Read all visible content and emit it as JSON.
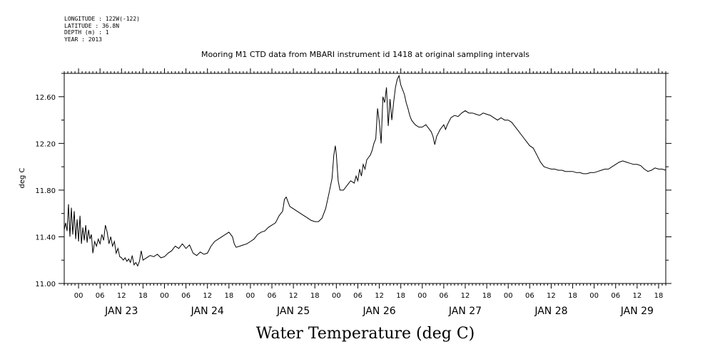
{
  "header": {
    "lines": [
      "LONGITUDE : 122W(-122)",
      "LATITUDE : 36.8N",
      "DEPTH (m) : 1",
      "YEAR : 2013"
    ]
  },
  "chart_data": {
    "type": "line",
    "title": "Mooring M1 CTD data from MBARI instrument id 1418 at original sampling intervals",
    "xlabel": "Water Temperature (deg C)",
    "ylabel": "deg C",
    "ylim": [
      11.0,
      12.8
    ],
    "xlim_hours": [
      -4,
      164
    ],
    "yticks": [
      "11.00",
      "11.40",
      "11.80",
      "12.20",
      "12.60"
    ],
    "hour_ticks": [
      "00",
      "06",
      "12",
      "18",
      "00",
      "06",
      "12",
      "18",
      "00",
      "06",
      "12",
      "18",
      "00",
      "06",
      "12",
      "18",
      "00",
      "06",
      "12",
      "18",
      "00",
      "06",
      "12",
      "18",
      "00",
      "06",
      "12",
      "18"
    ],
    "date_labels": [
      "JAN 23",
      "JAN 24",
      "JAN 25",
      "JAN 26",
      "JAN 27",
      "JAN 28",
      "JAN 29"
    ],
    "x_unit": "hours from JAN 23 00:00",
    "series": [
      {
        "name": "",
        "points": [
          [
            -4.0,
            11.46
          ],
          [
            -3.6,
            11.52
          ],
          [
            -3.2,
            11.45
          ],
          [
            -2.8,
            11.68
          ],
          [
            -2.4,
            11.4
          ],
          [
            -2.0,
            11.65
          ],
          [
            -1.6,
            11.42
          ],
          [
            -1.2,
            11.62
          ],
          [
            -0.8,
            11.38
          ],
          [
            -0.4,
            11.55
          ],
          [
            0.0,
            11.36
          ],
          [
            0.4,
            11.58
          ],
          [
            0.8,
            11.34
          ],
          [
            1.2,
            11.48
          ],
          [
            1.6,
            11.37
          ],
          [
            2.0,
            11.5
          ],
          [
            2.4,
            11.35
          ],
          [
            2.8,
            11.46
          ],
          [
            3.2,
            11.38
          ],
          [
            3.6,
            11.42
          ],
          [
            4.0,
            11.26
          ],
          [
            4.5,
            11.36
          ],
          [
            5.0,
            11.32
          ],
          [
            5.5,
            11.38
          ],
          [
            6.0,
            11.34
          ],
          [
            6.5,
            11.42
          ],
          [
            7.0,
            11.37
          ],
          [
            7.5,
            11.5
          ],
          [
            8.0,
            11.44
          ],
          [
            8.5,
            11.34
          ],
          [
            9.0,
            11.4
          ],
          [
            9.5,
            11.32
          ],
          [
            10.0,
            11.36
          ],
          [
            10.5,
            11.26
          ],
          [
            11.0,
            11.3
          ],
          [
            11.5,
            11.23
          ],
          [
            12.0,
            11.22
          ],
          [
            12.5,
            11.2
          ],
          [
            13.0,
            11.22
          ],
          [
            13.5,
            11.19
          ],
          [
            14.0,
            11.21
          ],
          [
            14.5,
            11.18
          ],
          [
            15.0,
            11.24
          ],
          [
            15.5,
            11.16
          ],
          [
            16.0,
            11.18
          ],
          [
            16.5,
            11.15
          ],
          [
            17.0,
            11.19
          ],
          [
            17.5,
            11.28
          ],
          [
            18.0,
            11.2
          ],
          [
            19.0,
            11.22
          ],
          [
            20.0,
            11.24
          ],
          [
            21.0,
            11.23
          ],
          [
            22.0,
            11.25
          ],
          [
            23.0,
            11.22
          ],
          [
            24.0,
            11.23
          ],
          [
            25.0,
            11.26
          ],
          [
            26.0,
            11.28
          ],
          [
            27.0,
            11.32
          ],
          [
            28.0,
            11.3
          ],
          [
            29.0,
            11.34
          ],
          [
            30.0,
            11.3
          ],
          [
            31.0,
            11.33
          ],
          [
            32.0,
            11.26
          ],
          [
            33.0,
            11.24
          ],
          [
            34.0,
            11.27
          ],
          [
            35.0,
            11.25
          ],
          [
            36.0,
            11.26
          ],
          [
            37.0,
            11.32
          ],
          [
            38.0,
            11.36
          ],
          [
            39.0,
            11.38
          ],
          [
            40.0,
            11.4
          ],
          [
            41.0,
            11.42
          ],
          [
            42.0,
            11.44
          ],
          [
            43.0,
            11.4
          ],
          [
            43.5,
            11.34
          ],
          [
            44.0,
            11.31
          ],
          [
            45.0,
            11.32
          ],
          [
            46.0,
            11.33
          ],
          [
            47.0,
            11.34
          ],
          [
            48.0,
            11.36
          ],
          [
            49.0,
            11.38
          ],
          [
            50.0,
            11.42
          ],
          [
            51.0,
            11.44
          ],
          [
            52.0,
            11.45
          ],
          [
            53.0,
            11.48
          ],
          [
            54.0,
            11.5
          ],
          [
            55.0,
            11.52
          ],
          [
            56.0,
            11.58
          ],
          [
            57.0,
            11.62
          ],
          [
            57.5,
            11.72
          ],
          [
            58.0,
            11.74
          ],
          [
            58.5,
            11.7
          ],
          [
            59.0,
            11.66
          ],
          [
            60.0,
            11.64
          ],
          [
            61.0,
            11.62
          ],
          [
            62.0,
            11.6
          ],
          [
            63.0,
            11.58
          ],
          [
            64.0,
            11.56
          ],
          [
            65.0,
            11.54
          ],
          [
            66.0,
            11.53
          ],
          [
            67.0,
            11.53
          ],
          [
            68.0,
            11.56
          ],
          [
            69.0,
            11.64
          ],
          [
            70.0,
            11.78
          ],
          [
            70.8,
            11.9
          ],
          [
            71.3,
            12.1
          ],
          [
            71.7,
            12.18
          ],
          [
            72.0,
            12.1
          ],
          [
            72.5,
            11.88
          ],
          [
            73.0,
            11.8
          ],
          [
            74.0,
            11.8
          ],
          [
            75.0,
            11.84
          ],
          [
            76.0,
            11.88
          ],
          [
            77.0,
            11.86
          ],
          [
            77.5,
            11.92
          ],
          [
            78.0,
            11.88
          ],
          [
            78.5,
            11.98
          ],
          [
            79.0,
            11.92
          ],
          [
            79.5,
            12.02
          ],
          [
            80.0,
            11.98
          ],
          [
            80.5,
            12.06
          ],
          [
            81.0,
            12.08
          ],
          [
            81.5,
            12.1
          ],
          [
            82.0,
            12.14
          ],
          [
            82.5,
            12.2
          ],
          [
            83.0,
            12.24
          ],
          [
            83.5,
            12.5
          ],
          [
            84.0,
            12.38
          ],
          [
            84.5,
            12.2
          ],
          [
            85.0,
            12.6
          ],
          [
            85.5,
            12.55
          ],
          [
            86.0,
            12.68
          ],
          [
            86.5,
            12.35
          ],
          [
            87.0,
            12.58
          ],
          [
            87.5,
            12.4
          ],
          [
            88.0,
            12.55
          ],
          [
            88.5,
            12.68
          ],
          [
            89.0,
            12.75
          ],
          [
            89.5,
            12.78
          ],
          [
            90.0,
            12.7
          ],
          [
            90.5,
            12.66
          ],
          [
            91.0,
            12.62
          ],
          [
            91.5,
            12.55
          ],
          [
            92.0,
            12.5
          ],
          [
            92.5,
            12.44
          ],
          [
            93.0,
            12.4
          ],
          [
            94.0,
            12.36
          ],
          [
            95.0,
            12.34
          ],
          [
            96.0,
            12.34
          ],
          [
            97.0,
            12.36
          ],
          [
            98.0,
            12.32
          ],
          [
            98.5,
            12.3
          ],
          [
            99.0,
            12.26
          ],
          [
            99.5,
            12.19
          ],
          [
            100.0,
            12.26
          ],
          [
            101.0,
            12.32
          ],
          [
            102.0,
            12.36
          ],
          [
            102.5,
            12.32
          ],
          [
            103.0,
            12.36
          ],
          [
            104.0,
            12.42
          ],
          [
            105.0,
            12.44
          ],
          [
            106.0,
            12.43
          ],
          [
            107.0,
            12.46
          ],
          [
            108.0,
            12.48
          ],
          [
            109.0,
            12.46
          ],
          [
            110.0,
            12.46
          ],
          [
            111.0,
            12.45
          ],
          [
            112.0,
            12.44
          ],
          [
            113.0,
            12.46
          ],
          [
            114.0,
            12.45
          ],
          [
            115.0,
            12.44
          ],
          [
            116.0,
            12.42
          ],
          [
            117.0,
            12.4
          ],
          [
            118.0,
            12.42
          ],
          [
            119.0,
            12.4
          ],
          [
            120.0,
            12.4
          ],
          [
            121.0,
            12.38
          ],
          [
            122.0,
            12.34
          ],
          [
            123.0,
            12.3
          ],
          [
            124.0,
            12.26
          ],
          [
            125.0,
            12.22
          ],
          [
            126.0,
            12.18
          ],
          [
            127.0,
            12.16
          ],
          [
            128.0,
            12.1
          ],
          [
            129.0,
            12.04
          ],
          [
            130.0,
            12.0
          ],
          [
            131.0,
            11.99
          ],
          [
            132.0,
            11.98
          ],
          [
            133.0,
            11.98
          ],
          [
            134.0,
            11.97
          ],
          [
            135.0,
            11.97
          ],
          [
            136.0,
            11.96
          ],
          [
            137.0,
            11.96
          ],
          [
            138.0,
            11.96
          ],
          [
            139.0,
            11.95
          ],
          [
            140.0,
            11.95
          ],
          [
            141.0,
            11.94
          ],
          [
            142.0,
            11.94
          ],
          [
            143.0,
            11.95
          ],
          [
            144.0,
            11.95
          ],
          [
            145.0,
            11.96
          ],
          [
            146.0,
            11.97
          ],
          [
            147.0,
            11.98
          ],
          [
            148.0,
            11.98
          ],
          [
            149.0,
            12.0
          ],
          [
            150.0,
            12.02
          ],
          [
            151.0,
            12.04
          ],
          [
            152.0,
            12.05
          ],
          [
            153.0,
            12.04
          ],
          [
            154.0,
            12.03
          ],
          [
            155.0,
            12.02
          ],
          [
            156.0,
            12.02
          ],
          [
            157.0,
            12.01
          ],
          [
            158.0,
            11.98
          ],
          [
            159.0,
            11.96
          ],
          [
            160.0,
            11.97
          ],
          [
            161.0,
            11.99
          ],
          [
            162.0,
            11.98
          ],
          [
            163.0,
            11.98
          ],
          [
            164.0,
            11.97
          ]
        ]
      }
    ]
  }
}
